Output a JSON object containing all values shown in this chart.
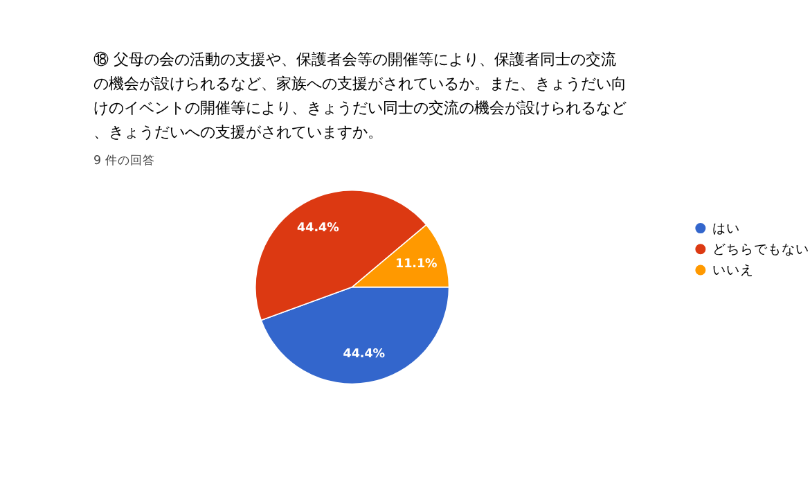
{
  "chart_data": {
    "type": "pie",
    "title": "⑱ 父母の会の活動の支援や、保護者会等の開催等により、保護者同士の交流の機会が設けられるなど、家族への支援がされているか。また、きょうだい向けのイベントの開催等により、きょうだい同士の交流の機会が設けられるなど、きょうだいへの支援がされていますか。",
    "subtitle": "9 件の回答",
    "categories": [
      "はい",
      "どちらでもない",
      "いいえ"
    ],
    "values": [
      44.4,
      44.4,
      11.1
    ],
    "colors": [
      "#3366cc",
      "#dc3912",
      "#ff9900"
    ],
    "value_labels": [
      "44.4%",
      "44.4%",
      "11.1%"
    ],
    "legend": "right"
  }
}
